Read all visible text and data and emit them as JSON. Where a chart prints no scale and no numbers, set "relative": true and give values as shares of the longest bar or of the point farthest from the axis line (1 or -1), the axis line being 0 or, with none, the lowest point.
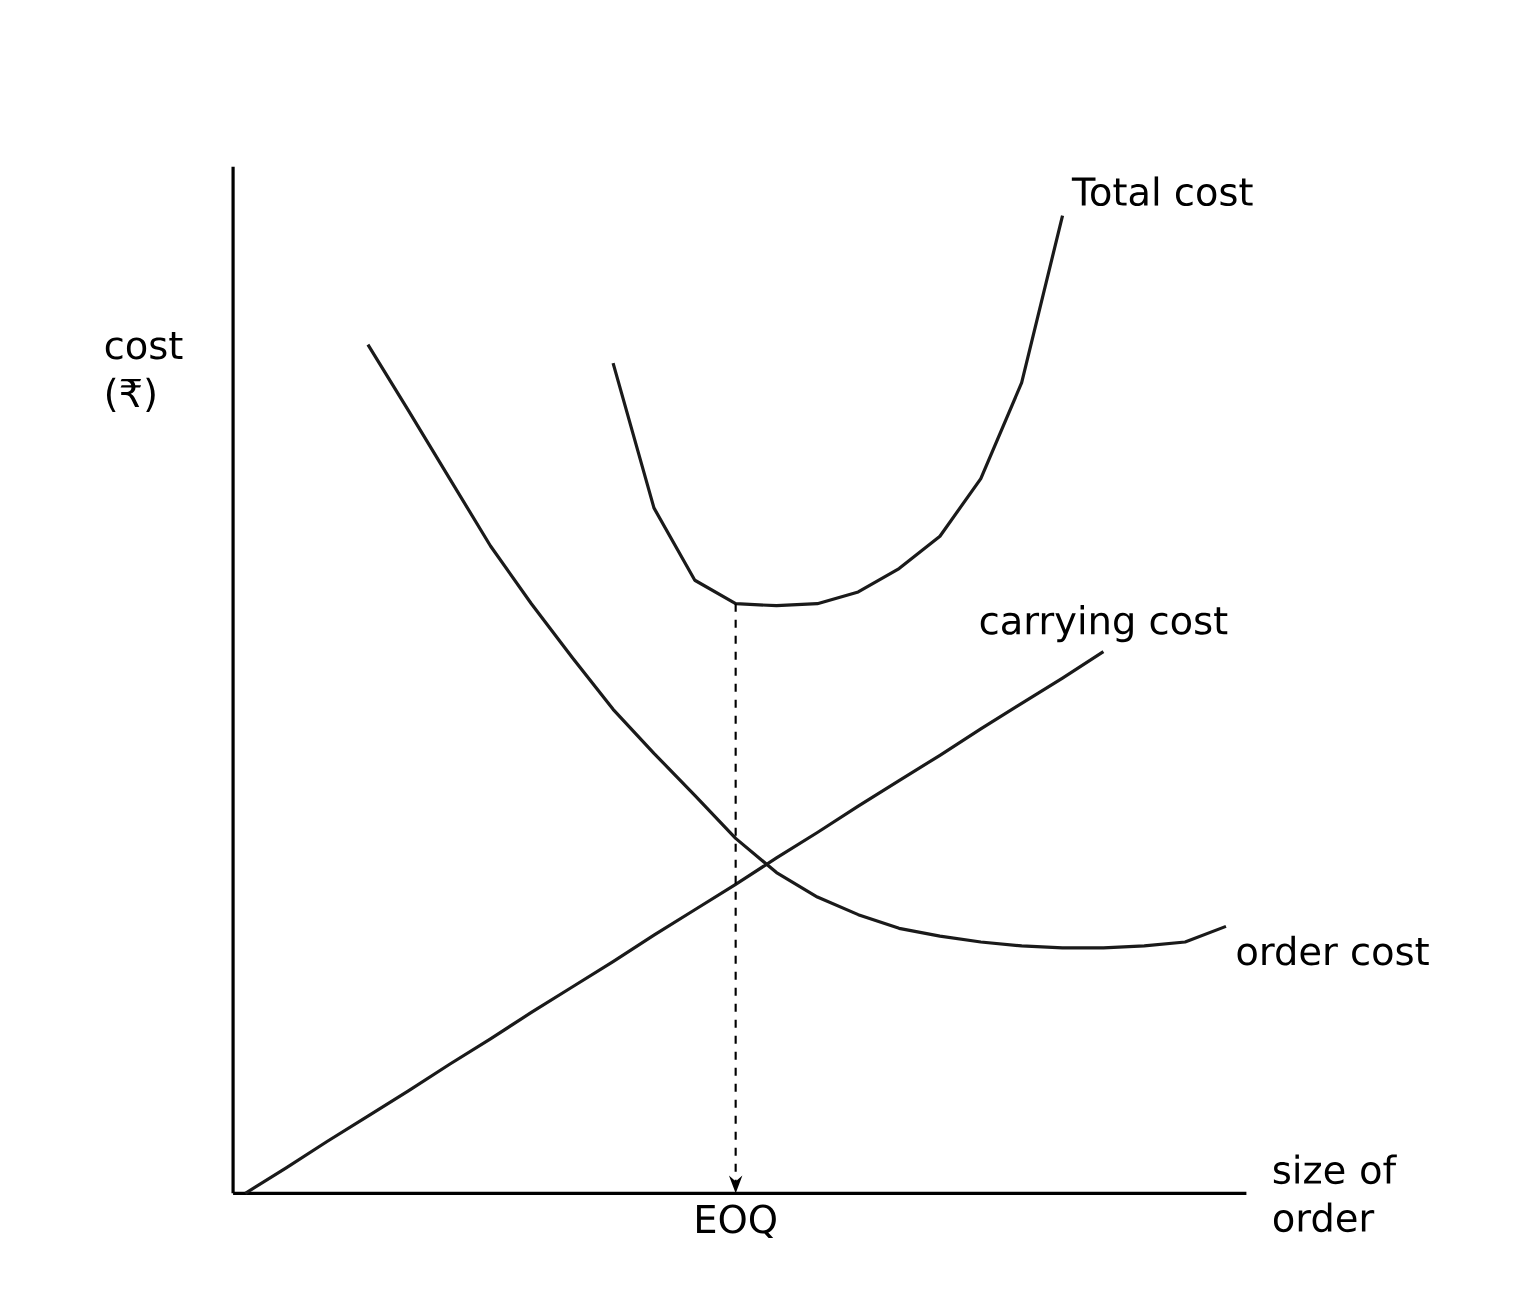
{
  "chart_data": {
    "type": "line",
    "relative": true,
    "xlabel": "size of order",
    "ylabel": "cost (₹)",
    "categories": [
      null,
      null,
      null,
      null,
      null,
      null,
      null,
      null,
      null,
      null,
      null,
      null,
      null,
      null,
      null,
      null,
      null,
      null,
      null,
      null,
      null,
      null,
      null,
      null,
      null
    ],
    "series": [
      {
        "name": "Total cost",
        "color": "#1a1a1a",
        "values": [
          null,
          null,
          null,
          null,
          null,
          null,
          null,
          null,
          null,
          0.849,
          0.701,
          0.627,
          0.603,
          0.601,
          0.603,
          0.615,
          0.639,
          0.672,
          0.731,
          0.829,
          1.0,
          null,
          null,
          null,
          null
        ]
      },
      {
        "name": "carrying cost",
        "color": "#1a1a1a",
        "values": [
          0,
          0.026,
          0.053,
          0.079,
          0.105,
          0.132,
          0.158,
          0.185,
          0.211,
          0.237,
          0.264,
          0.29,
          0.316,
          0.343,
          0.369,
          0.396,
          0.422,
          0.448,
          0.475,
          0.501,
          0.527,
          0.554,
          null,
          null,
          null
        ]
      },
      {
        "name": "order cost",
        "color": "#1a1a1a",
        "values": [
          null,
          null,
          null,
          0.868,
          0.8,
          0.731,
          0.662,
          0.603,
          0.548,
          0.495,
          0.45,
          0.407,
          0.363,
          0.328,
          0.303,
          0.285,
          0.271,
          0.263,
          0.257,
          0.253,
          0.251,
          0.251,
          0.253,
          0.257,
          0.273
        ]
      }
    ],
    "ref_lines": [
      {
        "axis": "x",
        "value": "EOQ",
        "line_style": "dashed"
      }
    ],
    "marker": "none",
    "line_style": "solid",
    "legend": false
  }
}
